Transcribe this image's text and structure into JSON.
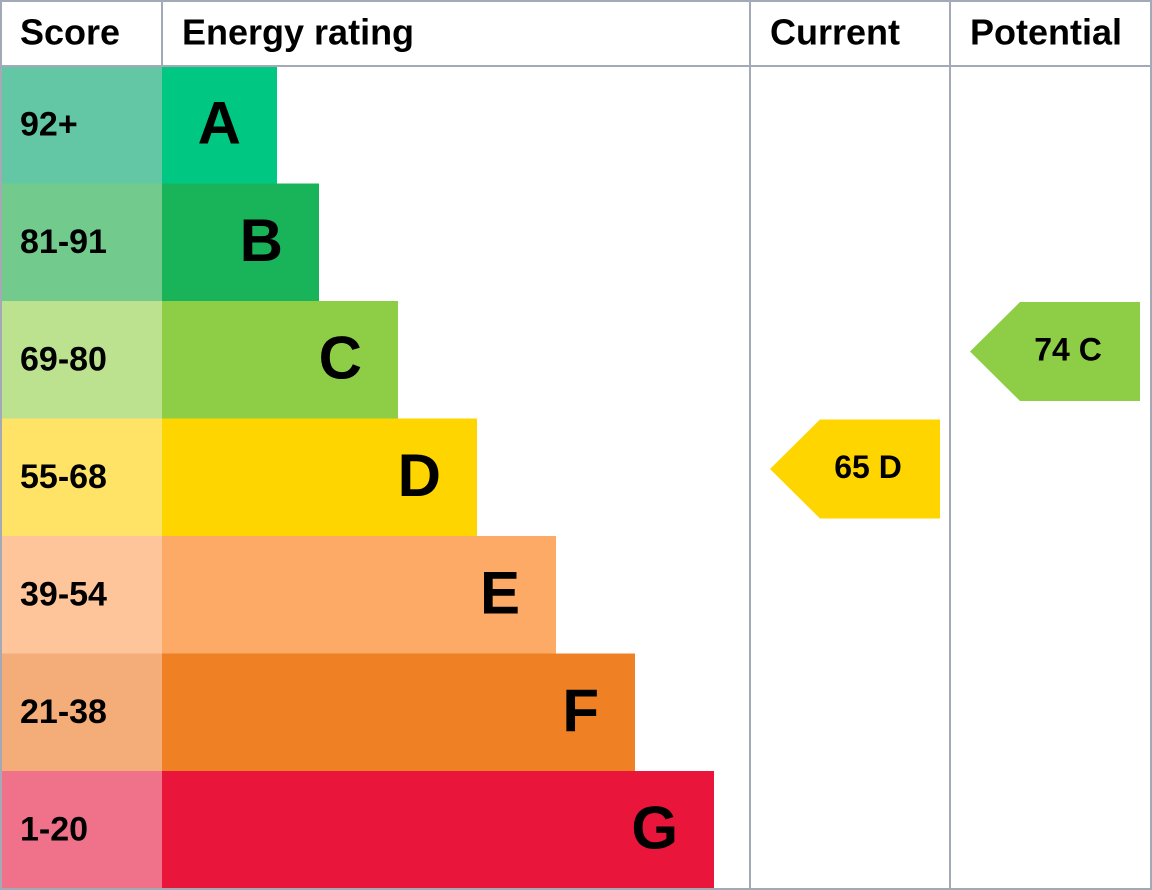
{
  "header": {
    "score": "Score",
    "rating": "Energy rating",
    "current": "Current",
    "potential": "Potential"
  },
  "bands": [
    {
      "score": "92+",
      "letter": "A"
    },
    {
      "score": "81-91",
      "letter": "B"
    },
    {
      "score": "69-80",
      "letter": "C"
    },
    {
      "score": "55-68",
      "letter": "D"
    },
    {
      "score": "39-54",
      "letter": "E"
    },
    {
      "score": "21-38",
      "letter": "F"
    },
    {
      "score": "1-20",
      "letter": "G"
    }
  ],
  "current": {
    "score": 65,
    "rating": "D"
  },
  "potential": {
    "score": 74,
    "rating": "C"
  }
}
